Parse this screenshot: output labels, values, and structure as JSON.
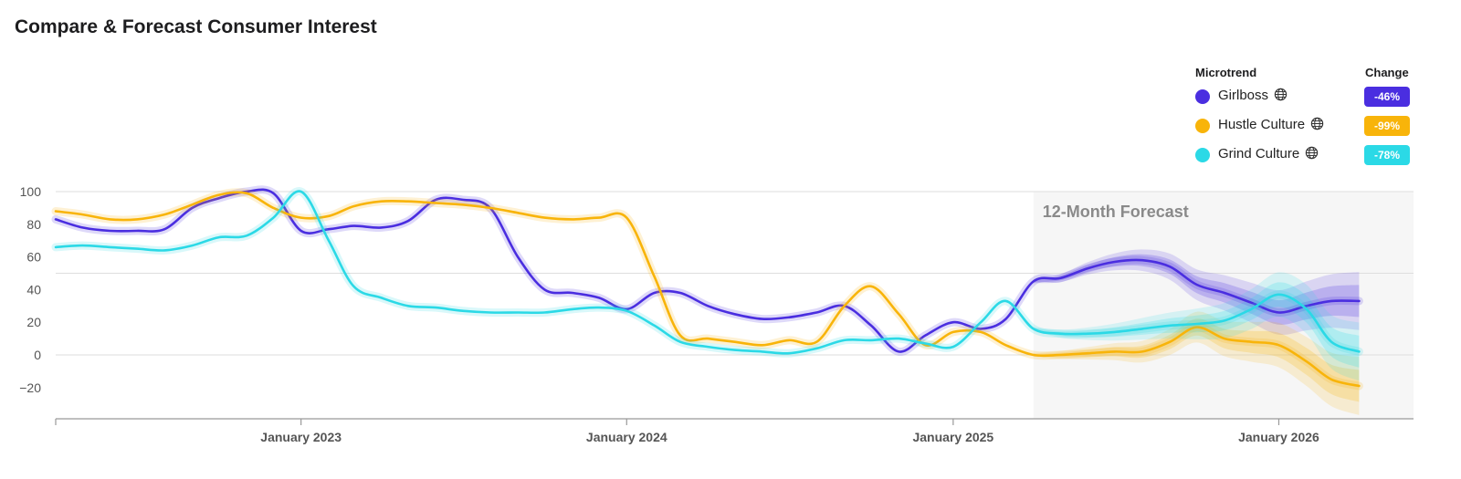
{
  "page": {
    "title": "Compare & Forecast Consumer Interest"
  },
  "legend": {
    "header_trend": "Microtrend",
    "header_change": "Change",
    "items": [
      {
        "name": "Girlboss",
        "change": "-46%",
        "color": "#4a2ee0",
        "icon": "globe-icon"
      },
      {
        "name": "Hustle Culture",
        "change": "-99%",
        "color": "#f8b40a",
        "icon": "globe-icon"
      },
      {
        "name": "Grind Culture",
        "change": "-78%",
        "color": "#2bd9e6",
        "icon": "globe-icon"
      }
    ]
  },
  "chart_data": {
    "type": "line",
    "title": "Compare & Forecast Consumer Interest",
    "xlabel": "",
    "ylabel": "",
    "ylim": [
      -40,
      100
    ],
    "yticks": [
      100,
      80,
      60,
      40,
      20,
      0,
      -20
    ],
    "xlim": [
      "2022-04-01",
      "2026-06-01"
    ],
    "xticks": [
      {
        "date": "2023-01-01",
        "label": "January 2023"
      },
      {
        "date": "2024-01-01",
        "label": "January 2024"
      },
      {
        "date": "2025-01-01",
        "label": "January 2025"
      },
      {
        "date": "2026-01-01",
        "label": "January 2026"
      }
    ],
    "forecast": {
      "label": "12-Month Forecast",
      "start": "2025-04-01"
    },
    "series": [
      {
        "name": "Girlboss",
        "color": "#4a2ee0",
        "points": [
          [
            "2022-04-01",
            83
          ],
          [
            "2022-05-01",
            78
          ],
          [
            "2022-06-01",
            76
          ],
          [
            "2022-07-01",
            76
          ],
          [
            "2022-08-01",
            77
          ],
          [
            "2022-09-01",
            90
          ],
          [
            "2022-10-01",
            96
          ],
          [
            "2022-11-01",
            100
          ],
          [
            "2022-12-01",
            99
          ],
          [
            "2023-01-01",
            76
          ],
          [
            "2023-02-01",
            77
          ],
          [
            "2023-03-01",
            79
          ],
          [
            "2023-04-01",
            78
          ],
          [
            "2023-05-01",
            82
          ],
          [
            "2023-06-01",
            95
          ],
          [
            "2023-07-01",
            95
          ],
          [
            "2023-08-01",
            90
          ],
          [
            "2023-09-01",
            60
          ],
          [
            "2023-10-01",
            40
          ],
          [
            "2023-11-01",
            38
          ],
          [
            "2023-12-01",
            35
          ],
          [
            "2024-01-01",
            28
          ],
          [
            "2024-02-01",
            38
          ],
          [
            "2024-03-01",
            38
          ],
          [
            "2024-04-01",
            30
          ],
          [
            "2024-05-01",
            25
          ],
          [
            "2024-06-01",
            22
          ],
          [
            "2024-07-01",
            23
          ],
          [
            "2024-08-01",
            26
          ],
          [
            "2024-09-01",
            30
          ],
          [
            "2024-10-01",
            18
          ],
          [
            "2024-11-01",
            2
          ],
          [
            "2024-12-01",
            12
          ],
          [
            "2025-01-01",
            20
          ],
          [
            "2025-02-01",
            16
          ],
          [
            "2025-03-01",
            22
          ],
          [
            "2025-04-01",
            45
          ],
          [
            "2025-05-01",
            47
          ],
          [
            "2025-06-01",
            53
          ],
          [
            "2025-07-01",
            57
          ],
          [
            "2025-08-01",
            58
          ],
          [
            "2025-09-01",
            54
          ],
          [
            "2025-10-01",
            43
          ],
          [
            "2025-11-01",
            38
          ],
          [
            "2025-12-01",
            32
          ],
          [
            "2026-01-01",
            26
          ],
          [
            "2026-02-01",
            30
          ],
          [
            "2026-03-01",
            33
          ],
          [
            "2026-04-01",
            33
          ]
        ]
      },
      {
        "name": "Hustle Culture",
        "color": "#f8b40a",
        "points": [
          [
            "2022-04-01",
            88
          ],
          [
            "2022-05-01",
            86
          ],
          [
            "2022-06-01",
            83
          ],
          [
            "2022-07-01",
            83
          ],
          [
            "2022-08-01",
            86
          ],
          [
            "2022-09-01",
            92
          ],
          [
            "2022-10-01",
            98
          ],
          [
            "2022-11-01",
            99
          ],
          [
            "2022-12-01",
            90
          ],
          [
            "2023-01-01",
            84
          ],
          [
            "2023-02-01",
            85
          ],
          [
            "2023-03-01",
            91
          ],
          [
            "2023-04-01",
            94
          ],
          [
            "2023-05-01",
            94
          ],
          [
            "2023-06-01",
            93
          ],
          [
            "2023-07-01",
            92
          ],
          [
            "2023-08-01",
            90
          ],
          [
            "2023-09-01",
            87
          ],
          [
            "2023-10-01",
            84
          ],
          [
            "2023-11-01",
            83
          ],
          [
            "2023-12-01",
            84
          ],
          [
            "2024-01-01",
            84
          ],
          [
            "2024-02-01",
            48
          ],
          [
            "2024-03-01",
            12
          ],
          [
            "2024-04-01",
            10
          ],
          [
            "2024-05-01",
            8
          ],
          [
            "2024-06-01",
            6
          ],
          [
            "2024-07-01",
            9
          ],
          [
            "2024-08-01",
            8
          ],
          [
            "2024-09-01",
            30
          ],
          [
            "2024-10-01",
            42
          ],
          [
            "2024-11-01",
            25
          ],
          [
            "2024-12-01",
            6
          ],
          [
            "2025-01-01",
            14
          ],
          [
            "2025-02-01",
            14
          ],
          [
            "2025-03-01",
            6
          ],
          [
            "2025-04-01",
            0
          ],
          [
            "2025-05-01",
            0
          ],
          [
            "2025-06-01",
            1
          ],
          [
            "2025-07-01",
            2
          ],
          [
            "2025-08-01",
            2
          ],
          [
            "2025-09-01",
            8
          ],
          [
            "2025-10-01",
            17
          ],
          [
            "2025-11-01",
            10
          ],
          [
            "2025-12-01",
            8
          ],
          [
            "2026-01-01",
            6
          ],
          [
            "2026-02-01",
            -4
          ],
          [
            "2026-03-01",
            -15
          ],
          [
            "2026-04-01",
            -19
          ]
        ]
      },
      {
        "name": "Grind Culture",
        "color": "#2bd9e6",
        "points": [
          [
            "2022-04-01",
            66
          ],
          [
            "2022-05-01",
            67
          ],
          [
            "2022-06-01",
            66
          ],
          [
            "2022-07-01",
            65
          ],
          [
            "2022-08-01",
            64
          ],
          [
            "2022-09-01",
            67
          ],
          [
            "2022-10-01",
            72
          ],
          [
            "2022-11-01",
            73
          ],
          [
            "2022-12-01",
            84
          ],
          [
            "2023-01-01",
            100
          ],
          [
            "2023-02-01",
            70
          ],
          [
            "2023-03-01",
            42
          ],
          [
            "2023-04-01",
            35
          ],
          [
            "2023-05-01",
            30
          ],
          [
            "2023-06-01",
            29
          ],
          [
            "2023-07-01",
            27
          ],
          [
            "2023-08-01",
            26
          ],
          [
            "2023-09-01",
            26
          ],
          [
            "2023-10-01",
            26
          ],
          [
            "2023-11-01",
            28
          ],
          [
            "2023-12-01",
            29
          ],
          [
            "2024-01-01",
            27
          ],
          [
            "2024-02-01",
            18
          ],
          [
            "2024-03-01",
            8
          ],
          [
            "2024-04-01",
            5
          ],
          [
            "2024-05-01",
            3
          ],
          [
            "2024-06-01",
            2
          ],
          [
            "2024-07-01",
            1
          ],
          [
            "2024-08-01",
            4
          ],
          [
            "2024-09-01",
            9
          ],
          [
            "2024-10-01",
            9
          ],
          [
            "2024-11-01",
            10
          ],
          [
            "2024-12-01",
            7
          ],
          [
            "2025-01-01",
            5
          ],
          [
            "2025-02-01",
            20
          ],
          [
            "2025-03-01",
            33
          ],
          [
            "2025-04-01",
            16
          ],
          [
            "2025-05-01",
            13
          ],
          [
            "2025-06-01",
            13
          ],
          [
            "2025-07-01",
            14
          ],
          [
            "2025-08-01",
            16
          ],
          [
            "2025-09-01",
            18
          ],
          [
            "2025-10-01",
            19
          ],
          [
            "2025-11-01",
            21
          ],
          [
            "2025-12-01",
            28
          ],
          [
            "2026-01-01",
            37
          ],
          [
            "2026-02-01",
            28
          ],
          [
            "2026-03-01",
            8
          ],
          [
            "2026-04-01",
            2
          ]
        ]
      }
    ]
  }
}
